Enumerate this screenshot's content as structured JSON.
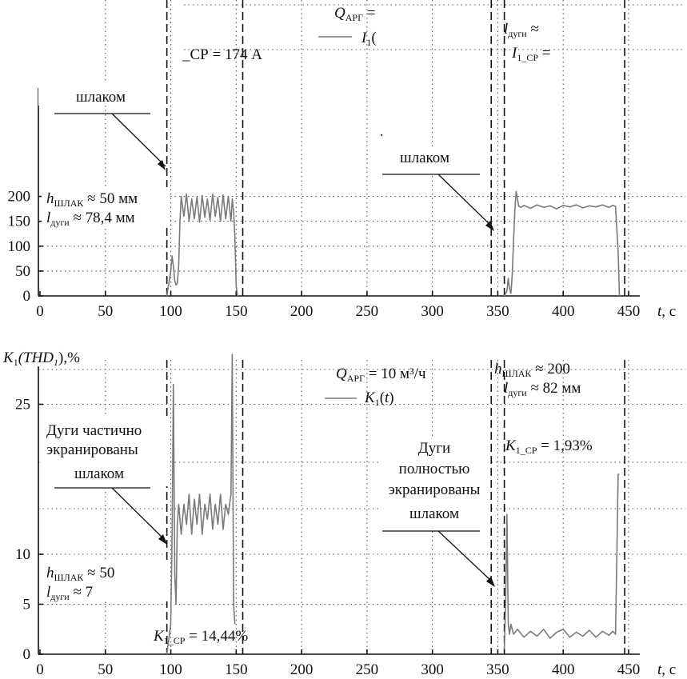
{
  "chart_data": [
    {
      "type": "line",
      "xlabel": "t, с",
      "ylabel": "",
      "xlim": [
        0,
        450
      ],
      "ylim": [
        0,
        200
      ],
      "x_ticks": [
        0,
        50,
        100,
        150,
        200,
        250,
        300,
        350,
        400,
        450
      ],
      "y_ticks": [
        0,
        50,
        100,
        150,
        200
      ],
      "x_tick_labels": [
        "0",
        "50",
        "100",
        "150",
        "200",
        "250",
        "300",
        "350",
        "400",
        "450"
      ],
      "y_tick_labels": [
        "0",
        "50",
        "100",
        "150",
        "200"
      ],
      "grid": true,
      "legend": {
        "label": "I",
        "sub": "1",
        "text_suffix": "("
      },
      "header_text": {
        "q_text": "Q",
        "q_sub": "АРГ",
        "q_suffix": " ="
      },
      "markers_x": [
        97,
        155,
        345,
        355,
        447
      ],
      "series": [
        {
          "name": "I1(t)",
          "x": [
            97,
            100,
            101,
            102,
            103,
            104,
            105,
            106,
            107,
            108,
            110,
            112,
            114,
            116,
            118,
            120,
            122,
            124,
            126,
            128,
            130,
            132,
            134,
            136,
            138,
            140,
            142,
            144,
            146,
            147,
            148,
            149,
            150,
            151
          ],
          "y": [
            0,
            50,
            80,
            60,
            30,
            22,
            25,
            60,
            150,
            200,
            160,
            205,
            150,
            195,
            155,
            200,
            148,
            202,
            158,
            195,
            152,
            205,
            160,
            198,
            150,
            203,
            155,
            200,
            150,
            195,
            170,
            120,
            20,
            0
          ]
        },
        {
          "name": "I1(t)",
          "x": [
            355,
            357,
            358,
            359,
            360,
            361,
            362,
            363,
            364,
            365,
            366,
            368,
            370,
            375,
            380,
            385,
            390,
            395,
            400,
            405,
            410,
            415,
            420,
            425,
            430,
            435,
            438,
            440,
            442,
            443
          ],
          "y": [
            0,
            10,
            35,
            15,
            5,
            40,
            110,
            170,
            210,
            195,
            180,
            178,
            182,
            176,
            183,
            178,
            181,
            175,
            182,
            179,
            183,
            177,
            181,
            179,
            183,
            178,
            182,
            180,
            90,
            0
          ]
        }
      ],
      "annotations": {
        "current_avg_1": "_СР = 174 А",
        "left_label": "шлаком",
        "h_left_prefix": "h",
        "h_left_sub": "ШЛАК",
        "h_left_value": "≈  50 мм",
        "l_left_prefix": "l",
        "l_left_sub": "дуги",
        "l_left_value": "≈  78,4 мм",
        "right_label": "шлаком",
        "l_right_prefix": "l",
        "l_right_sub": "дуги",
        "l_right_value": "≈",
        "i_right_prefix": "I",
        "i_right_sub": "1_СР",
        "i_right_value": "=",
        "fragment_dot": "·"
      }
    },
    {
      "type": "line",
      "ylabel": "K₁(THD₁),%",
      "xlabel": "t, с",
      "xlim": [
        0,
        450
      ],
      "ylim": [
        0,
        30
      ],
      "x_ticks": [
        0,
        50,
        100,
        150,
        200,
        250,
        300,
        350,
        400,
        450
      ],
      "y_ticks": [
        0,
        5,
        10,
        25
      ],
      "x_tick_labels": [
        "0",
        "50",
        "100",
        "150",
        "200",
        "250",
        "300",
        "350",
        "400",
        "450"
      ],
      "y_tick_labels": [
        "0",
        "5",
        "10",
        "25"
      ],
      "grid": true,
      "legend": {
        "label": "K",
        "sub": "1",
        "text_suffix": "(t)"
      },
      "header_text": {
        "q_text": "Q",
        "q_sub": "АРГ",
        "q_suffix": " = 10 м³/ч"
      },
      "markers_x": [
        97,
        155,
        345,
        355,
        447
      ],
      "series": [
        {
          "name": "K1(t)",
          "x": [
            97,
            100,
            101,
            102,
            103,
            104,
            105,
            106,
            108,
            110,
            112,
            114,
            116,
            118,
            120,
            122,
            124,
            126,
            128,
            130,
            132,
            134,
            136,
            138,
            140,
            142,
            144,
            145,
            146,
            147,
            148,
            149
          ],
          "y": [
            0,
            3,
            12,
            27,
            8,
            5,
            13,
            15,
            12,
            15,
            13,
            16,
            12,
            15.5,
            13,
            16,
            12,
            15,
            13.5,
            16,
            12.5,
            15,
            13,
            16,
            12.5,
            15,
            14,
            15,
            16,
            30,
            5,
            3
          ],
          "lowered_value": 3
        },
        {
          "name": "K1(t)",
          "x": [
            355,
            356,
            357,
            358,
            359,
            360,
            362,
            365,
            370,
            375,
            380,
            385,
            390,
            395,
            400,
            405,
            410,
            415,
            420,
            425,
            430,
            435,
            438,
            440,
            441,
            442,
            443
          ],
          "y": [
            0.5,
            5,
            14,
            3,
            2,
            3,
            2,
            2.5,
            1.7,
            2.3,
            1.8,
            2.5,
            1.6,
            2.2,
            2.5,
            1.7,
            2.2,
            1.8,
            2.4,
            1.7,
            2.3,
            1.9,
            2.3,
            2,
            10,
            18,
            18
          ]
        }
      ],
      "annotations": {
        "left_label_1": "Дуги частично",
        "left_label_2": "экранированы",
        "left_label_3": "шлаком",
        "h_left_prefix": "h",
        "h_left_sub": "ШЛАК",
        "h_left_value": "≈  50",
        "l_left_prefix": "l",
        "l_left_sub": "дуги",
        "l_left_value": "≈  7",
        "k_avg_prefix": "K",
        "k_avg_sub": "1_СР",
        "k_avg_value": " = 14,44%",
        "right_label_1": "Дуги",
        "right_label_2": "полностью",
        "right_label_3": "экранированы",
        "right_label_4": "шлаком",
        "h_right_prefix": "h",
        "h_right_sub": "ШЛАК",
        "h_right_value": "≈  200",
        "l_right_prefix": "l",
        "l_right_sub": "дуги",
        "l_right_value": "≈  82 мм",
        "k_right_prefix": "K",
        "k_right_sub": "1_СР",
        "k_right_value": " = 1,93%"
      }
    }
  ]
}
